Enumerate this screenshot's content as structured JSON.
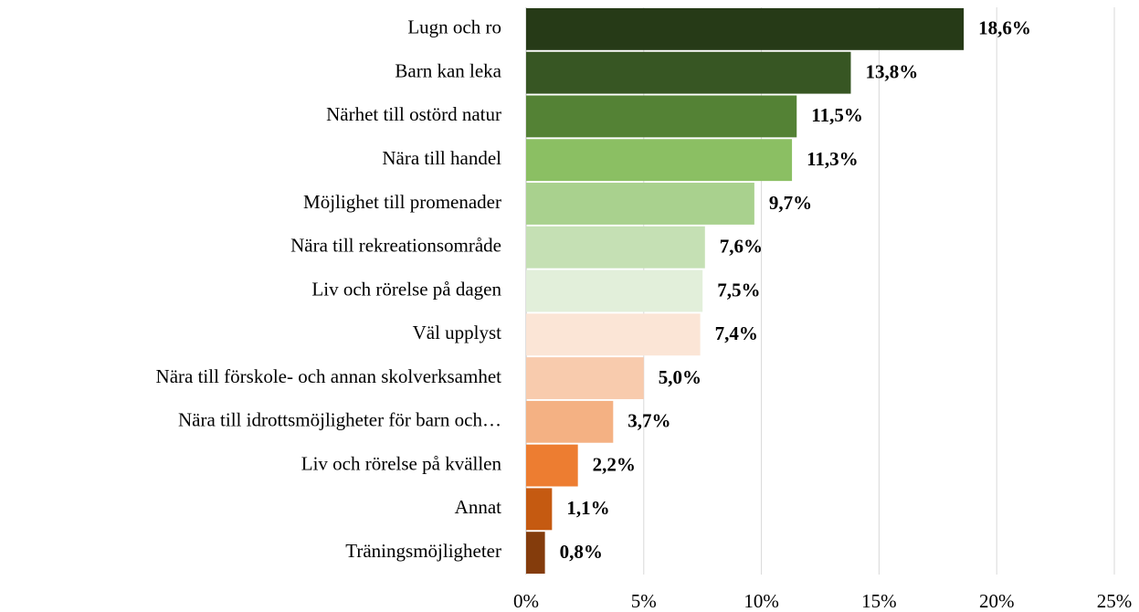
{
  "chart_data": {
    "type": "barh",
    "categories": [
      "Lugn och ro",
      "Barn kan leka",
      "Närhet till ostörd natur",
      "Nära till handel",
      "Möjlighet till promenader",
      "Nära till rekreationsområde",
      "Liv och rörelse på dagen",
      "Väl upplyst",
      "Nära till förskole- och annan skolverksamhet",
      "Nära till idrottsmöjligheter för barn och…",
      "Liv och rörelse på kvällen",
      "Annat",
      "Träningsmöjligheter"
    ],
    "values": [
      18.6,
      13.8,
      11.5,
      11.3,
      9.7,
      7.6,
      7.5,
      7.4,
      5.0,
      3.7,
      2.2,
      1.1,
      0.8
    ],
    "value_labels": [
      "18,6%",
      "13,8%",
      "11,5%",
      "11,3%",
      "9,7%",
      "7,6%",
      "7,5%",
      "7,4%",
      "5,0%",
      "3,7%",
      "2,2%",
      "1,1%",
      "0,8%"
    ],
    "colors": [
      "#263a17",
      "#375623",
      "#548235",
      "#8bbf63",
      "#a9d18e",
      "#c5e0b4",
      "#e2efda",
      "#fbe5d6",
      "#f8cbad",
      "#f4b183",
      "#ed7d31",
      "#c55a11",
      "#843c0c"
    ],
    "xlim": [
      0,
      25
    ],
    "xticks": [
      {
        "value": 0,
        "label": "0%"
      },
      {
        "value": 5,
        "label": "5%"
      },
      {
        "value": 10,
        "label": "10%"
      },
      {
        "value": 15,
        "label": "15%"
      },
      {
        "value": 20,
        "label": "20%"
      },
      {
        "value": 25,
        "label": "25%"
      }
    ],
    "grid": true
  }
}
